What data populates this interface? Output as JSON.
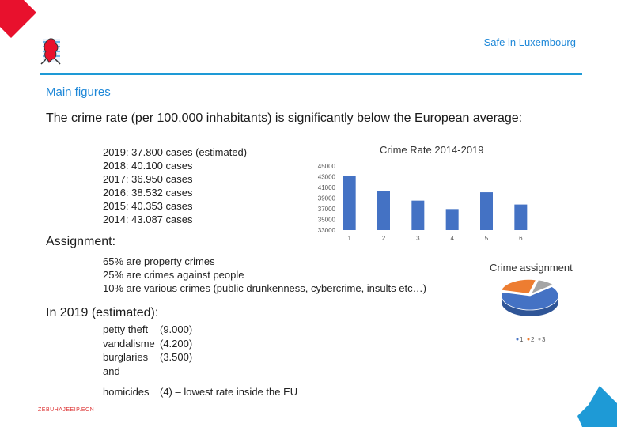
{
  "header": {
    "title": "Safe in Luxembourg"
  },
  "section_title": "Main figures",
  "intro_text": "The crime rate (per 100,000 inhabitants) is significantly below the European average:",
  "stats": [
    "2019: 37.800 cases (estimated)",
    "2018: 40.100 cases",
    "2017: 36.950 cases",
    "2016: 38.532 cases",
    "2015: 40.353 cases",
    "2014: 43.087 cases"
  ],
  "assignment": {
    "heading": "Assignment:",
    "items": [
      "65% are property crimes",
      "25% are crimes against people",
      "10% are various crimes (public drunkenness, cybercrime, insults etc…)"
    ]
  },
  "estimated": {
    "heading": "In 2019 (estimated):",
    "rows": [
      {
        "label": "petty theft",
        "value": "(9.000)"
      },
      {
        "label": "vandalisme",
        "value": "(4.200)"
      },
      {
        "label": "burglaries",
        "value": "(3.500)"
      },
      {
        "label": "and",
        "value": ""
      },
      {
        "label": "homicides",
        "value": "(4) – lowest rate inside the EU"
      }
    ]
  },
  "footer_text": "ZEBUHAJEEIP.ECN",
  "colors": {
    "accent": "#1e9ad6",
    "bar": "#4472c4",
    "pie_1": "#4472c4",
    "pie_2": "#ed7d31",
    "pie_3": "#a5a5a5",
    "corner_red": "#e8112d"
  },
  "chart_data": [
    {
      "type": "bar",
      "title": "Crime Rate 2014-2019",
      "categories": [
        "1",
        "2",
        "3",
        "4",
        "5",
        "6"
      ],
      "values": [
        43087,
        40353,
        38532,
        36950,
        40100,
        37800
      ],
      "yticks": [
        "33000",
        "35000",
        "37000",
        "39000",
        "41000",
        "43000",
        "45000"
      ],
      "ylim": [
        33000,
        45000
      ],
      "grid": false,
      "xlabel": "",
      "ylabel": ""
    },
    {
      "type": "pie",
      "title": "Crime assignment",
      "labels": [
        "1",
        "2",
        "3"
      ],
      "values": [
        65,
        25,
        10
      ],
      "legend": "bottom"
    }
  ]
}
